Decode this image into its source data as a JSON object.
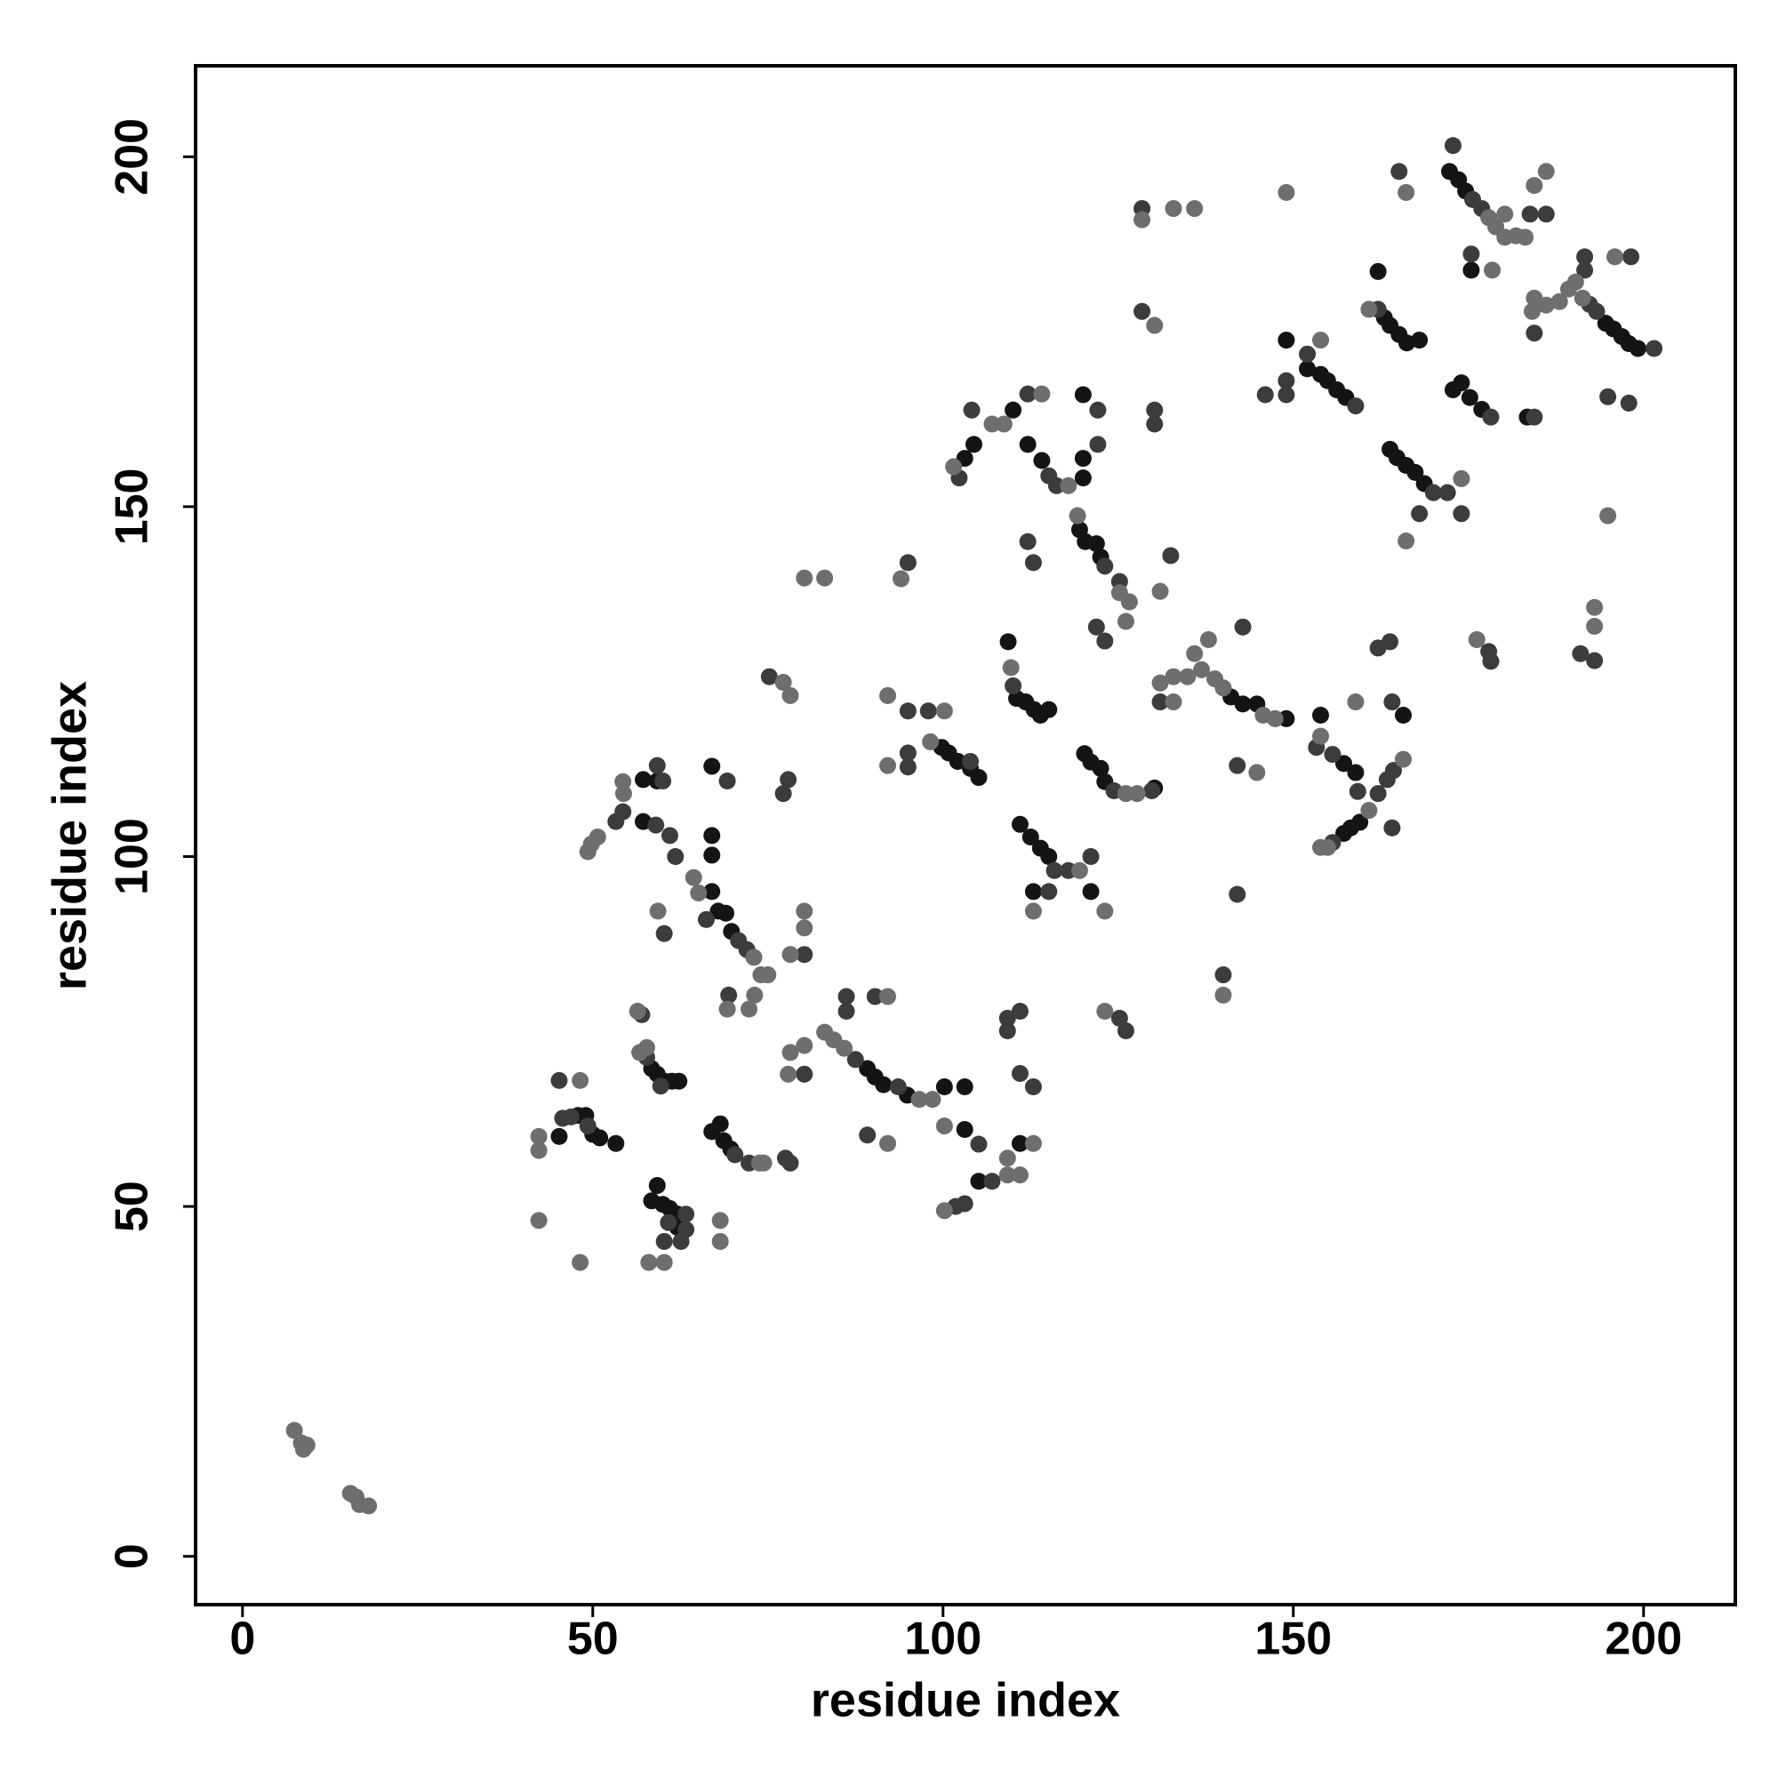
{
  "chart_data": {
    "type": "scatter",
    "xlabel": "residue index",
    "ylabel": "residue index",
    "xlim": [
      -6.7,
      213.1
    ],
    "ylim": [
      -6.9,
      213.0
    ],
    "xticks": [
      0,
      50,
      100,
      150,
      200
    ],
    "yticks": [
      0,
      50,
      100,
      150,
      200
    ],
    "grid": false,
    "series": [
      {
        "color": "#141414",
        "x": [
          45.2,
          47.9,
          49,
          50,
          51,
          53.3,
          59.2,
          58.4,
          60,
          61,
          62.1,
          62.1,
          58.4,
          59.2,
          60.2,
          61.3,
          62.3,
          68.2,
          67,
          68.7,
          69.7,
          57.2,
          59.2,
          57.2,
          67,
          67,
          67,
          67,
          67.9,
          69,
          69.8,
          89.2,
          90.3,
          91.5,
          94.9,
          100.2,
          103.1,
          103.1,
          105.1,
          111,
          99.8,
          100.8,
          102.1,
          103.9,
          105.1,
          109.3,
          110.5,
          111.8,
          113,
          113.9,
          115.1,
          111,
          112.5,
          113.9,
          115.1,
          112.9,
          121.1,
          120.2,
          121.1,
          122.5,
          123.1,
          104.4,
          103.1,
          110,
          112.1,
          114.1,
          120,
          120,
          120,
          119.5,
          120.3,
          121.9,
          122.5,
          141.1,
          142.8,
          144.8,
          149,
          153.9,
          157.2,
          158.9,
          159.5,
          158.2,
          157.2,
          165.7,
          152,
          153.9,
          154.9,
          156.2,
          157.5,
          149,
          162.1,
          163,
          163.8,
          165.1,
          166.2,
          168,
          163.8,
          164.8,
          166.1,
          167.4,
          168.7,
          172.8,
          174,
          175.2,
          176.9,
          183.4,
          172.3,
          173.6,
          174.6,
          175.4,
          194.6,
          195.7,
          196.9,
          197.9,
          199.2,
          130.2
        ],
        "y": [
          60,
          63,
          63,
          60.3,
          59.8,
          59,
          53,
          50.8,
          50.3,
          49.7,
          48.9,
          47,
          69.7,
          68.9,
          67.9,
          67.9,
          67.9,
          61.8,
          60.7,
          59.4,
          58.2,
          111,
          110.8,
          105,
          100.2,
          103,
          112.9,
          95,
          92.2,
          91.9,
          89.3,
          69.7,
          68.5,
          67.4,
          65.9,
          67.1,
          67.1,
          61,
          53.6,
          59,
          115.6,
          114.8,
          113.6,
          112.6,
          111.3,
          130.7,
          122.6,
          122.1,
          121,
          120.2,
          121,
          104.6,
          102.8,
          101.2,
          100,
          95,
          95,
          114.7,
          113.5,
          112.6,
          110.7,
          158.9,
          156.9,
          163.8,
          158.9,
          156.6,
          166,
          156.9,
          154.1,
          146.7,
          145,
          144.7,
          142.8,
          122.8,
          121.8,
          121.8,
          119.7,
          120.2,
          113.3,
          112,
          104.9,
          104.1,
          103.3,
          120.2,
          169.7,
          168.9,
          168,
          166.7,
          165.6,
          173.8,
          183.6,
          177,
          175.9,
          174.6,
          173.4,
          173.8,
          158.2,
          157,
          155.9,
          154.9,
          153.3,
          166.7,
          167.7,
          165.6,
          163.9,
          162.8,
          197.9,
          196.7,
          195.1,
          183.8,
          176.2,
          175.4,
          174.3,
          173.3,
          172.6,
          109.8
        ]
      },
      {
        "color": "#3c3c3c",
        "x": [
          45.7,
          46.9,
          49.3,
          45.2,
          60.8,
          63.3,
          63.3,
          62.6,
          60.2,
          57,
          57.7,
          59.7,
          70.3,
          72.3,
          77.5,
          78.2,
          53.3,
          54.3,
          59.2,
          60,
          59,
          61,
          61.8,
          69.2,
          66.2,
          70.8,
          72,
          69.4,
          60.2,
          80.2,
          75.2,
          77.2,
          77.9,
          95,
          95,
          95,
          95,
          86.2,
          86.2,
          90.3,
          89.2,
          93.6,
          87.5,
          80.2,
          101.8,
          103.1,
          105.1,
          107,
          97.9,
          103.9,
          110,
          115.9,
          117.9,
          121.1,
          115.1,
          109.2,
          111,
          109.2,
          111,
          112.9,
          112.1,
          112.9,
          124.4,
          129.8,
          125.2,
          126.1,
          104.1,
          112.1,
          102.3,
          115.1,
          116.2,
          122.1,
          122.1,
          123.1,
          125.2,
          121.9,
          123.1,
          132.5,
          128.4,
          128.4,
          130.2,
          130.2,
          131,
          142.8,
          142,
          142,
          153.3,
          155.6,
          159.2,
          155.6,
          162.1,
          163.4,
          164.3,
          164.1,
          162.1,
          163.8,
          164.1,
          149,
          149,
          152,
          158.9,
          162.1,
          165.1,
          170,
          168,
          172,
          174,
          178.2,
          184.4,
          172.8,
          175.6,
          176.9,
          175.4,
          183.8,
          186.1,
          191.6,
          198.2,
          191.6,
          194.9,
          197.9,
          191,
          193,
          177.9,
          178.2,
          184.4,
          192.3,
          193.3,
          201.5,
          140,
          146
        ],
        "y": [
          62.6,
          62.8,
          61.5,
          68,
          47.7,
          48.9,
          46.7,
          45,
          45,
          77.4,
          71.3,
          67.2,
          57.4,
          56.2,
          56.9,
          56.2,
          105,
          106.4,
          113,
          110.8,
          104.5,
          103,
          100,
          110.8,
          91,
          88,
          86.7,
          80.2,
          89,
          86,
          125.7,
          109,
          111,
          142,
          120.8,
          114.8,
          112.8,
          80,
          77.9,
          80,
          60.2,
          67.1,
          71,
          68.9,
          50,
          50.4,
          58.9,
          53.6,
          120.8,
          113.6,
          124.4,
          98,
          98,
          100,
          95,
          76.9,
          77.9,
          75.1,
          69,
          67.1,
          145,
          142,
          109.4,
          109.4,
          76.9,
          75.1,
          163.8,
          166.1,
          154.1,
          154.4,
          153,
          163.8,
          158.9,
          141.5,
          139.3,
          132.8,
          130.8,
          143,
          192.6,
          177.9,
          161.8,
          163.8,
          122.1,
          132.8,
          113,
          94.6,
          115.6,
          114.6,
          109.3,
          102,
          109,
          111,
          112.3,
          122.1,
          129.8,
          130.7,
          104.1,
          168,
          166,
          171.8,
          164.4,
          178.2,
          197.9,
          152,
          149,
          152,
          149,
          162.8,
          162.8,
          201.6,
          193.9,
          192.6,
          186.1,
          191.8,
          191.8,
          185.7,
          185.7,
          183.8,
          165.7,
          164.8,
          129,
          128,
          129.3,
          127.9,
          174.8,
          178.9,
          177.9,
          172.6,
          83.1,
          166
        ]
      },
      {
        "color": "#6e6e6e",
        "x": [
          7.4,
          8.4,
          9.2,
          8.7,
          15.4,
          16.2,
          16.7,
          18,
          42.3,
          42.3,
          48.2,
          42.3,
          48.2,
          58,
          60.2,
          68.2,
          68.2,
          56.4,
          56.7,
          57.7,
          73.8,
          74.4,
          49.3,
          49.8,
          50.7,
          54.3,
          54.4,
          64.4,
          65.1,
          73,
          74,
          75,
          73.1,
          69.2,
          72.3,
          59.3,
          80.2,
          80.2,
          78.2,
          77.2,
          78.2,
          80.2,
          83.1,
          94,
          92.1,
          92.1,
          78.2,
          80.2,
          83.1,
          84.4,
          85.9,
          92.1,
          92.1,
          77.9,
          96.6,
          98.5,
          100.2,
          100.2,
          109.2,
          111,
          109.2,
          112.9,
          100.2,
          98.2,
          109.7,
          119.5,
          112.9,
          123.1,
          123.1,
          126.1,
          127.7,
          101.5,
          107,
          108.7,
          114.1,
          117.9,
          119.2,
          125.2,
          126.6,
          126.1,
          131,
          128.4,
          132.9,
          135.9,
          130.2,
          131,
          132.9,
          134.9,
          135.9,
          137.9,
          136.9,
          138.8,
          140,
          145.7,
          147.4,
          132.9,
          144.8,
          140,
          153.9,
          160.8,
          165.7,
          158.9,
          154.9,
          153.9,
          153.9,
          149,
          160.8,
          166.1,
          166.1,
          174,
          177.9,
          178.9,
          180.2,
          181.8,
          183.1,
          180.2,
          178.4,
          184.4,
          186.1,
          184.1,
          186.1,
          188,
          189.3,
          190.3,
          191.3,
          195.9,
          194.9,
          193,
          193,
          176.2,
          184.4
        ],
        "y": [
          18,
          16.2,
          15.9,
          15.3,
          9,
          8.5,
          7.4,
          7.2,
          60,
          58,
          68,
          48,
          42,
          42,
          42,
          48,
          45,
          77.9,
          72,
          72.7,
          56.2,
          56.2,
          100.7,
          101.8,
          102.8,
          110.7,
          109,
          97,
          94.8,
          85.6,
          83.1,
          83.1,
          80.2,
          78.2,
          78.2,
          92.2,
          92.2,
          89.8,
          86,
          124.9,
          123,
          139.8,
          139.8,
          139.7,
          123,
          113,
          72,
          73,
          74.9,
          73.8,
          72.6,
          80,
          59,
          68.9,
          65.3,
          65.3,
          61.5,
          49.4,
          54.5,
          54.5,
          56.9,
          59,
          120.8,
          116.4,
          127,
          98,
          92.2,
          92.2,
          77.9,
          109,
          109,
          155.7,
          161.8,
          161.8,
          166.1,
          153,
          148.7,
          137.7,
          136.4,
          133.6,
          137.9,
          191,
          192.6,
          192.6,
          175.9,
          124.8,
          125.7,
          125.7,
          129,
          131,
          126.7,
          125.4,
          124.1,
          120.2,
          119.7,
          122.1,
          112,
          80.2,
          117.2,
          106.6,
          113.9,
          122.1,
          101.3,
          101.3,
          173.8,
          194.9,
          178.2,
          194.9,
          145.1,
          154,
          191.3,
          190,
          188.5,
          188.7,
          188.5,
          191.8,
          183.8,
          195.9,
          197.9,
          177.9,
          178.8,
          179.3,
          181.1,
          182.1,
          179.8,
          185.7,
          148.7,
          135.6,
          132.9,
          131,
          179.8
        ]
      }
    ]
  }
}
